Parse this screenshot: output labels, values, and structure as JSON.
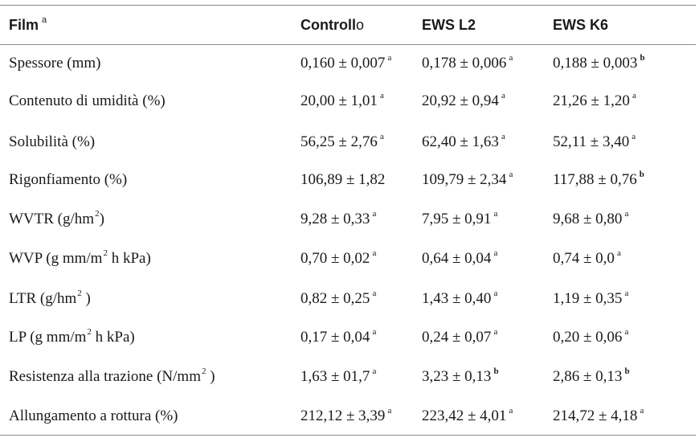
{
  "header": {
    "film": "Film",
    "film_sup": "a",
    "col1_bold": "Controll",
    "col1_light": "o",
    "col2": "EWS L2",
    "col3": "EWS K6"
  },
  "rows": [
    {
      "label": "Spessore (mm)",
      "label_sup": "",
      "label_after": "",
      "v1": "0,160 ± 0,007",
      "s1": "a",
      "v2": "0,178 ± 0,006",
      "s2": "a",
      "v3": "0,188 ± 0,003",
      "s3": "b"
    },
    {
      "label": "Contenuto di umidità (%)",
      "label_sup": "",
      "label_after": "",
      "v1": "20,00 ± 1,01",
      "s1": "a",
      "v2": "20,92 ± 0,94",
      "s2": "a",
      "v3": "21,26 ± 1,20",
      "s3": "a"
    },
    {
      "label": "Solubilità (%)",
      "label_sup": "",
      "label_after": "",
      "v1": "56,25 ± 2,76",
      "s1": "a",
      "v2": "62,40 ± 1,63",
      "s2": "a",
      "v3": "52,11 ± 3,40",
      "s3": "a"
    },
    {
      "label": "Rigonfiamento (%)",
      "label_sup": "",
      "label_after": "",
      "v1": "106,89 ± 1,82",
      "s1": "",
      "v2": "109,79 ± 2,34",
      "s2": "a",
      "v3": "117,88 ± 0,76",
      "s3": "b"
    },
    {
      "label": "WVTR (g/hm",
      "label_sup": "2",
      "label_after": ")",
      "v1": "9,28 ± 0,33",
      "s1": "a",
      "v2": "7,95 ± 0,91",
      "s2": "a",
      "v3": "9,68 ± 0,80",
      "s3": "a"
    },
    {
      "label": "WVP (g mm/m",
      "label_sup": "2",
      "label_after": " h kPa)",
      "v1": "0,70 ± 0,02",
      "s1": "a",
      "v2": "0,64 ± 0,04",
      "s2": "a",
      "v3": "0,74 ± 0,0",
      "s3": "a"
    },
    {
      "label": "LTR (g/hm",
      "label_sup": "2",
      "label_after": " )",
      "v1": "0,82 ± 0,25",
      "s1": "a",
      "v2": "1,43 ± 0,40",
      "s2": "a",
      "v3": "1,19 ± 0,35",
      "s3": "a"
    },
    {
      "label": "LP (g mm/m",
      "label_sup": "2",
      "label_after": " h kPa)",
      "v1": "0,17 ± 0,04",
      "s1": "a",
      "v2": "0,24 ± 0,07",
      "s2": "a",
      "v3": "0,20 ± 0,06",
      "s3": "a"
    },
    {
      "label": "Resistenza alla trazione (N/mm",
      "label_sup": "2",
      "label_after": " )",
      "v1": "1,63 ± 01,7",
      "s1": "a",
      "v2": "3,23 ± 0,13",
      "s2": "b",
      "v3": "2,86 ± 0,13",
      "s3": "b"
    },
    {
      "label": "Allungamento a rottura (%)",
      "label_sup": "",
      "label_after": "",
      "v1": "212,12 ± 3,39",
      "s1": "a",
      "v2": "223,42 ± 4,01",
      "s2": "a",
      "v3": "214,72 ± 4,18",
      "s3": "a"
    }
  ]
}
